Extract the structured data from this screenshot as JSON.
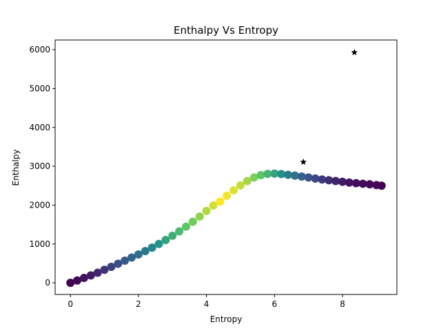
{
  "chart_data": {
    "type": "scatter",
    "title": "Enthalpy Vs Entropy",
    "xlabel": "Entropy",
    "ylabel": "Enthalpy",
    "xlim": [
      -0.45,
      9.6
    ],
    "ylim": [
      -300,
      6250
    ],
    "xticks": [
      0,
      2,
      4,
      6,
      8
    ],
    "yticks": [
      0,
      1000,
      2000,
      3000,
      4000,
      5000,
      6000
    ],
    "grid": false,
    "legend": "none",
    "colormap": "viridis",
    "series": [
      {
        "marker": "circle",
        "x": [
          0.0,
          0.2,
          0.4,
          0.6,
          0.8,
          1.0,
          1.2,
          1.4,
          1.6,
          1.8,
          2.0,
          2.2,
          2.4,
          2.6,
          2.8,
          3.0,
          3.2,
          3.4,
          3.6,
          3.8,
          4.0,
          4.2,
          4.4,
          4.6,
          4.8,
          5.0,
          5.2,
          5.4,
          5.6,
          5.8,
          6.0,
          6.2,
          6.4,
          6.6,
          6.8,
          7.0,
          7.2,
          7.4,
          7.6,
          7.8,
          8.0,
          8.2,
          8.4,
          8.6,
          8.8,
          9.0,
          9.15
        ],
        "y": [
          0,
          60,
          125,
          190,
          260,
          335,
          410,
          490,
          570,
          650,
          730,
          815,
          905,
          1000,
          1100,
          1210,
          1325,
          1445,
          1570,
          1705,
          1850,
          1990,
          2090,
          2240,
          2380,
          2510,
          2620,
          2710,
          2770,
          2805,
          2810,
          2800,
          2780,
          2760,
          2735,
          2710,
          2685,
          2660,
          2640,
          2620,
          2600,
          2580,
          2565,
          2550,
          2535,
          2515,
          2500
        ],
        "color_value": [
          0.0,
          0.02,
          0.05,
          0.08,
          0.12,
          0.16,
          0.2,
          0.24,
          0.28,
          0.32,
          0.36,
          0.41,
          0.46,
          0.52,
          0.58,
          0.63,
          0.68,
          0.73,
          0.78,
          0.83,
          0.88,
          0.93,
          1.0,
          0.98,
          0.95,
          0.91,
          0.86,
          0.8,
          0.73,
          0.66,
          0.58,
          0.5,
          0.43,
          0.37,
          0.31,
          0.26,
          0.22,
          0.18,
          0.14,
          0.11,
          0.08,
          0.06,
          0.04,
          0.03,
          0.02,
          0.01,
          0.0
        ]
      },
      {
        "marker": "star",
        "color": "#000000",
        "x": [
          6.85,
          8.35
        ],
        "y": [
          3110,
          5930
        ]
      }
    ]
  }
}
